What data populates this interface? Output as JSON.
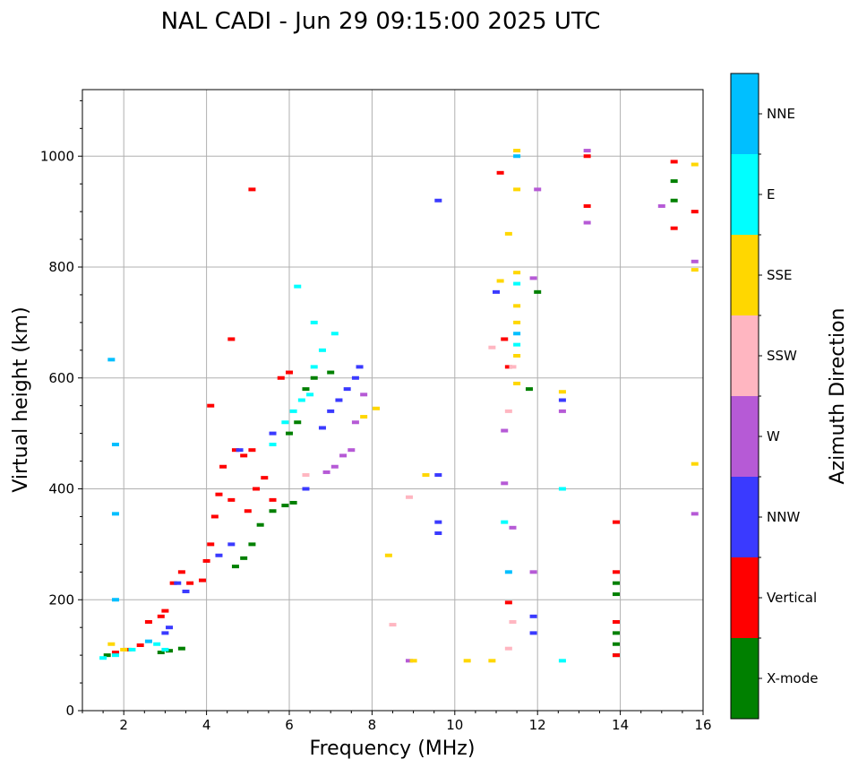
{
  "chart_data": {
    "type": "scatter",
    "title": "NAL CADI - Jun 29 09:15:00 2025 UTC",
    "xlabel": "Frequency (MHz)",
    "ylabel": "Virtual height (km)",
    "xlim": [
      1,
      16
    ],
    "ylim": [
      0,
      1120
    ],
    "xticks": [
      2,
      4,
      6,
      8,
      10,
      12,
      14,
      16
    ],
    "yticks": [
      0,
      200,
      400,
      600,
      800,
      1000
    ],
    "grid": true,
    "colorbar": {
      "label": "Azimuth Direction",
      "categories": [
        {
          "name": "X-mode",
          "color": "#008000"
        },
        {
          "name": "Vertical",
          "color": "#ff0000"
        },
        {
          "name": "NNW",
          "color": "#3a3aff"
        },
        {
          "name": "W",
          "color": "#b65ad6"
        },
        {
          "name": "SSW",
          "color": "#ffb6c1"
        },
        {
          "name": "SSE",
          "color": "#ffd700"
        },
        {
          "name": "E",
          "color": "#00ffff"
        },
        {
          "name": "NNE",
          "color": "#00bfff"
        }
      ]
    },
    "series": [
      {
        "name": "X-mode",
        "points": [
          [
            1.6,
            100
          ],
          [
            2.9,
            105
          ],
          [
            3.1,
            108
          ],
          [
            3.4,
            112
          ],
          [
            4.7,
            260
          ],
          [
            4.9,
            275
          ],
          [
            5.1,
            300
          ],
          [
            5.3,
            335
          ],
          [
            5.6,
            360
          ],
          [
            5.9,
            370
          ],
          [
            6.1,
            375
          ],
          [
            6.0,
            500
          ],
          [
            6.2,
            520
          ],
          [
            6.4,
            580
          ],
          [
            6.6,
            600
          ],
          [
            7.0,
            610
          ],
          [
            11.8,
            580
          ],
          [
            12.0,
            755
          ],
          [
            13.9,
            100
          ],
          [
            13.9,
            120
          ],
          [
            13.9,
            140
          ],
          [
            13.9,
            210
          ],
          [
            13.9,
            230
          ],
          [
            15.3,
            920
          ],
          [
            15.3,
            955
          ]
        ]
      },
      {
        "name": "Vertical",
        "points": [
          [
            1.8,
            105
          ],
          [
            2.1,
            110
          ],
          [
            2.4,
            118
          ],
          [
            2.6,
            160
          ],
          [
            2.9,
            170
          ],
          [
            3.0,
            180
          ],
          [
            3.2,
            230
          ],
          [
            3.4,
            250
          ],
          [
            3.6,
            230
          ],
          [
            3.9,
            235
          ],
          [
            4.0,
            270
          ],
          [
            4.1,
            300
          ],
          [
            4.2,
            350
          ],
          [
            4.3,
            390
          ],
          [
            4.4,
            440
          ],
          [
            4.6,
            380
          ],
          [
            4.7,
            470
          ],
          [
            4.9,
            460
          ],
          [
            5.0,
            360
          ],
          [
            5.1,
            470
          ],
          [
            5.2,
            400
          ],
          [
            5.4,
            420
          ],
          [
            5.6,
            380
          ],
          [
            5.8,
            600
          ],
          [
            6.0,
            610
          ],
          [
            4.1,
            550
          ],
          [
            4.6,
            670
          ],
          [
            5.1,
            940
          ],
          [
            11.2,
            670
          ],
          [
            11.3,
            620
          ],
          [
            11.3,
            195
          ],
          [
            13.2,
            1000
          ],
          [
            13.2,
            910
          ],
          [
            13.9,
            100
          ],
          [
            13.9,
            160
          ],
          [
            13.9,
            250
          ],
          [
            13.9,
            340
          ],
          [
            15.3,
            990
          ],
          [
            15.3,
            870
          ],
          [
            15.8,
            900
          ],
          [
            11.1,
            970
          ]
        ]
      },
      {
        "name": "NNW",
        "points": [
          [
            3.0,
            140
          ],
          [
            3.1,
            150
          ],
          [
            3.3,
            230
          ],
          [
            3.5,
            215
          ],
          [
            4.3,
            280
          ],
          [
            4.6,
            300
          ],
          [
            4.8,
            470
          ],
          [
            5.6,
            500
          ],
          [
            6.4,
            400
          ],
          [
            6.8,
            510
          ],
          [
            7.0,
            540
          ],
          [
            7.2,
            560
          ],
          [
            7.4,
            580
          ],
          [
            7.6,
            600
          ],
          [
            7.7,
            620
          ],
          [
            9.6,
            320
          ],
          [
            9.6,
            340
          ],
          [
            9.6,
            425
          ],
          [
            9.6,
            920
          ],
          [
            11.9,
            140
          ],
          [
            11.9,
            170
          ],
          [
            12.6,
            560
          ],
          [
            11.0,
            755
          ]
        ]
      },
      {
        "name": "W",
        "points": [
          [
            6.9,
            430
          ],
          [
            7.1,
            440
          ],
          [
            7.3,
            460
          ],
          [
            7.5,
            470
          ],
          [
            7.6,
            520
          ],
          [
            7.8,
            570
          ],
          [
            11.2,
            505
          ],
          [
            11.4,
            330
          ],
          [
            11.9,
            250
          ],
          [
            11.9,
            780
          ],
          [
            12.0,
            940
          ],
          [
            13.2,
            880
          ],
          [
            13.2,
            1010
          ],
          [
            15.0,
            910
          ],
          [
            15.8,
            810
          ],
          [
            15.8,
            355
          ],
          [
            12.6,
            540
          ],
          [
            11.2,
            410
          ],
          [
            8.9,
            90
          ]
        ]
      },
      {
        "name": "SSW",
        "points": [
          [
            6.4,
            425
          ],
          [
            8.5,
            155
          ],
          [
            8.9,
            385
          ],
          [
            10.9,
            655
          ],
          [
            11.3,
            112
          ],
          [
            11.3,
            540
          ],
          [
            11.4,
            620
          ],
          [
            11.4,
            160
          ]
        ]
      },
      {
        "name": "SSE",
        "points": [
          [
            1.7,
            120
          ],
          [
            2.0,
            110
          ],
          [
            7.8,
            530
          ],
          [
            8.1,
            545
          ],
          [
            8.4,
            280
          ],
          [
            9.3,
            425
          ],
          [
            9.0,
            90
          ],
          [
            10.3,
            90
          ],
          [
            10.9,
            90
          ],
          [
            11.1,
            775
          ],
          [
            11.3,
            860
          ],
          [
            11.5,
            590
          ],
          [
            11.5,
            640
          ],
          [
            11.5,
            700
          ],
          [
            11.5,
            730
          ],
          [
            11.5,
            790
          ],
          [
            11.5,
            940
          ],
          [
            11.5,
            1010
          ],
          [
            12.6,
            575
          ],
          [
            15.8,
            985
          ],
          [
            15.8,
            795
          ],
          [
            15.8,
            445
          ]
        ]
      },
      {
        "name": "E",
        "points": [
          [
            1.5,
            95
          ],
          [
            1.8,
            100
          ],
          [
            2.2,
            110
          ],
          [
            2.8,
            120
          ],
          [
            3.0,
            110
          ],
          [
            5.6,
            480
          ],
          [
            5.9,
            520
          ],
          [
            6.1,
            540
          ],
          [
            6.3,
            560
          ],
          [
            6.5,
            570
          ],
          [
            6.6,
            620
          ],
          [
            6.8,
            650
          ],
          [
            6.6,
            700
          ],
          [
            6.2,
            765
          ],
          [
            7.1,
            680
          ],
          [
            11.2,
            340
          ],
          [
            11.5,
            660
          ],
          [
            11.5,
            770
          ],
          [
            12.6,
            400
          ],
          [
            12.6,
            90
          ]
        ]
      },
      {
        "name": "NNE",
        "points": [
          [
            1.7,
            633
          ],
          [
            1.8,
            480
          ],
          [
            1.8,
            355
          ],
          [
            1.8,
            200
          ],
          [
            2.6,
            125
          ],
          [
            11.3,
            250
          ],
          [
            11.5,
            680
          ],
          [
            11.5,
            1000
          ]
        ]
      }
    ]
  }
}
